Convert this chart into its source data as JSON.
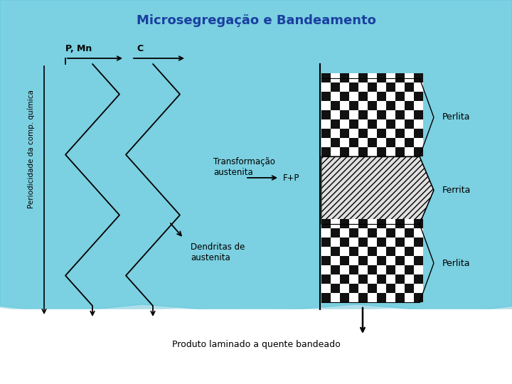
{
  "title": "Microsegregação e Bandeamento",
  "title_color": "#1a3fa0",
  "title_fontsize": 13,
  "ylabel": "Periodicidade da comp. química",
  "label_PMn": "P, Mn",
  "label_C": "C",
  "label_transformacao": "Transformação\naustenita",
  "label_FP": "F+P",
  "label_dendritas": "Dendritas de\naustenita",
  "label_perlita1": "Perlita",
  "label_ferrita": "Ferrita",
  "label_perlita2": "Perlita",
  "label_produto": "Produto laminado a quente bandeado",
  "banner_color1": "#5bc8dc",
  "banner_color2": "#a8dce8",
  "banner_color3": "#cceaf5",
  "bg_white": "#ffffff"
}
